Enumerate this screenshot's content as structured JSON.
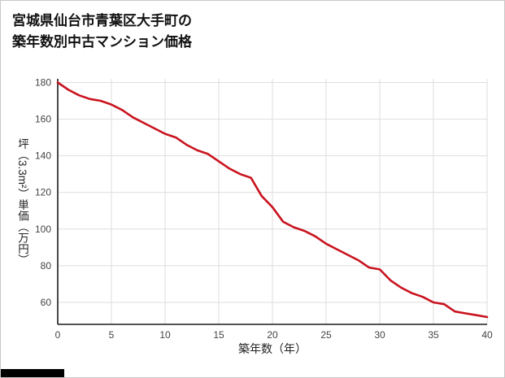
{
  "title": {
    "line1": "宮城県仙台市青葉区大手町の",
    "line2": "築年数別中古マンション価格"
  },
  "chart_data": {
    "type": "line",
    "title": "宮城県仙台市青葉区大手町の築年数別中古マンション価格",
    "xlabel": "築年数（年）",
    "ylabel": "坪（3.3m²）単価（万円）",
    "x": [
      0,
      1,
      2,
      3,
      4,
      5,
      6,
      7,
      8,
      9,
      10,
      11,
      12,
      13,
      14,
      15,
      16,
      17,
      18,
      19,
      20,
      21,
      22,
      23,
      24,
      25,
      26,
      27,
      28,
      29,
      30,
      31,
      32,
      33,
      34,
      35,
      36,
      37,
      38,
      39,
      40
    ],
    "y": [
      180,
      176,
      173,
      171,
      170,
      168,
      165,
      161,
      158,
      155,
      152,
      150,
      146,
      143,
      141,
      137,
      133,
      130,
      128,
      118,
      112,
      104,
      101,
      99,
      96,
      92,
      89,
      86,
      83,
      79,
      78,
      72,
      68,
      65,
      63,
      60,
      59,
      55,
      54,
      53,
      52
    ],
    "xlim": [
      0,
      40
    ],
    "ylim": [
      48,
      182
    ],
    "xticks": [
      0,
      5,
      10,
      15,
      20,
      25,
      30,
      35,
      40
    ],
    "yticks": [
      60,
      80,
      100,
      120,
      140,
      160,
      180
    ],
    "grid": true,
    "legend": "none",
    "line_color": "#c9131e",
    "grid_color": "#dedede",
    "axis_color": "#1a1a1a"
  }
}
